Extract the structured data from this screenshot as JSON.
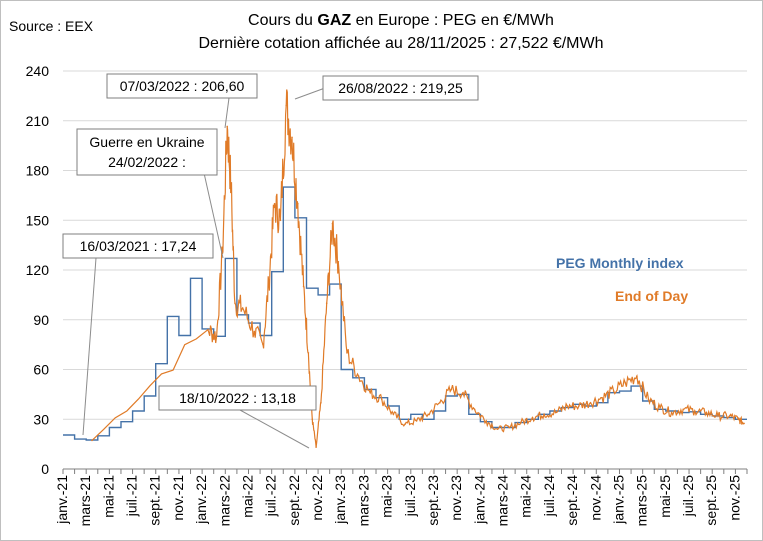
{
  "chart_data": {
    "type": "line",
    "source": "Source : EEX",
    "title_prefix": "Cours du ",
    "title_bold": "GAZ",
    "title_suffix": " en Europe : PEG en €/MWh",
    "subtitle": "Dernière cotation affichée au 28/11/2025 : 27,522 €/MWh",
    "xlabel": "",
    "ylabel": "",
    "ylim": [
      0,
      240
    ],
    "yticks": [
      0,
      30,
      60,
      90,
      120,
      150,
      180,
      210,
      240
    ],
    "x_start": "2021-01",
    "x_end": "2025-12",
    "xticks": [
      "janv.-21",
      "mars-21",
      "mai-21",
      "juil.-21",
      "sept.-21",
      "nov.-21",
      "janv.-22",
      "mars-22",
      "mai-22",
      "juil.-22",
      "sept.-22",
      "nov.-22",
      "janv.-23",
      "mars-23",
      "mai-23",
      "juil.-23",
      "sept.-23",
      "nov.-23",
      "janv.-24",
      "mars-24",
      "mai-24",
      "juil.-24",
      "sept.-24",
      "nov.-24",
      "janv.-25",
      "mars-25",
      "mai-25",
      "juil.-25",
      "sept.-25",
      "nov.-25"
    ],
    "grid": true,
    "legend_position": "right",
    "series": [
      {
        "name": "PEG Monthly index",
        "color": "#4472a8",
        "step": true,
        "x": [
          "2021-01",
          "2021-02",
          "2021-03",
          "2021-04",
          "2021-05",
          "2021-06",
          "2021-07",
          "2021-08",
          "2021-09",
          "2021-10",
          "2021-11",
          "2021-12",
          "2022-01",
          "2022-02",
          "2022-03",
          "2022-04",
          "2022-05",
          "2022-06",
          "2022-07",
          "2022-08",
          "2022-09",
          "2022-10",
          "2022-11",
          "2022-12",
          "2023-01",
          "2023-02",
          "2023-03",
          "2023-04",
          "2023-05",
          "2023-06",
          "2023-07",
          "2023-08",
          "2023-09",
          "2023-10",
          "2023-11",
          "2023-12",
          "2024-01",
          "2024-02",
          "2024-03",
          "2024-04",
          "2024-05",
          "2024-06",
          "2024-07",
          "2024-08",
          "2024-09",
          "2024-10",
          "2024-11",
          "2024-12",
          "2025-01",
          "2025-02",
          "2025-03",
          "2025-04",
          "2025-05",
          "2025-06",
          "2025-07",
          "2025-08",
          "2025-09",
          "2025-10",
          "2025-11"
        ],
        "values": [
          20.5,
          18,
          17.5,
          20,
          25,
          28.5,
          35,
          44,
          63.5,
          92,
          80.5,
          115,
          84.5,
          80,
          127,
          93,
          88,
          80.5,
          119,
          170,
          151.5,
          109,
          105,
          111.5,
          60,
          55,
          48,
          43,
          38,
          30,
          33,
          30,
          35,
          44,
          45,
          33,
          28.5,
          25,
          25,
          28,
          30,
          33,
          35,
          37,
          39,
          38,
          40,
          46,
          47,
          50,
          41,
          36,
          35,
          34,
          34.5,
          33,
          32,
          31,
          30
        ]
      },
      {
        "name": "End of Day",
        "color": "#e07b28",
        "x": [
          "2021-01",
          "2021-02",
          "2021-03",
          "2021-05",
          "2021-07",
          "2021-09",
          "2021-10",
          "2021-11",
          "2021-12",
          "2022-01",
          "2022-02",
          "2022-02",
          "2022-03",
          "2022-03",
          "2022-03",
          "2022-04",
          "2022-05",
          "2022-06",
          "2022-06",
          "2022-07",
          "2022-07",
          "2022-08",
          "2022-08",
          "2022-09",
          "2022-09",
          "2022-10",
          "2022-10",
          "2022-10",
          "2022-11",
          "2022-11",
          "2022-12",
          "2022-12",
          "2023-01",
          "2023-02",
          "2023-03",
          "2023-04",
          "2023-05",
          "2023-06",
          "2023-07",
          "2023-08",
          "2023-09",
          "2023-10",
          "2023-11",
          "2023-12",
          "2024-01",
          "2024-02",
          "2024-03",
          "2024-04",
          "2024-05",
          "2024-06",
          "2024-07",
          "2024-08",
          "2024-09",
          "2024-10",
          "2024-11",
          "2024-12",
          "2025-01",
          "2025-02",
          "2025-03",
          "2025-04",
          "2025-05",
          "2025-06",
          "2025-07",
          "2025-08",
          "2025-09",
          "2025-10",
          "2025-11",
          "2025-11"
        ],
        "values": [
          null,
          null,
          17.24,
          null,
          null,
          null,
          null,
          null,
          null,
          84,
          80,
          130,
          206.6,
          170,
          100,
          97,
          83,
          75,
          112,
          160,
          150,
          219.25,
          200,
          160,
          110,
          70,
          30,
          13.18,
          40,
          100,
          148,
          125,
          70,
          56,
          46,
          42,
          33,
          27,
          29,
          33,
          40,
          48,
          46,
          36,
          29,
          24,
          25,
          28,
          31,
          33,
          34,
          38,
          38,
          40,
          43,
          47,
          52,
          56,
          42,
          37,
          34,
          36,
          35,
          34,
          32,
          32,
          30,
          27.522
        ]
      }
    ],
    "annotations": [
      {
        "text": "07/03/2022 : 206,60",
        "x": "2022-03",
        "y": 206.6
      },
      {
        "text": "26/08/2022 : 219,25",
        "x": "2022-08",
        "y": 219.25
      },
      {
        "text_line1": "Guerre en Ukraine",
        "text_line2": "24/02/2022 :",
        "x": "2022-02",
        "y": 130
      },
      {
        "text": "16/03/2021 : 17,24",
        "x": "2021-03",
        "y": 17.24
      },
      {
        "text": "18/10/2022 : 13,18",
        "x": "2022-10",
        "y": 13.18
      }
    ]
  }
}
